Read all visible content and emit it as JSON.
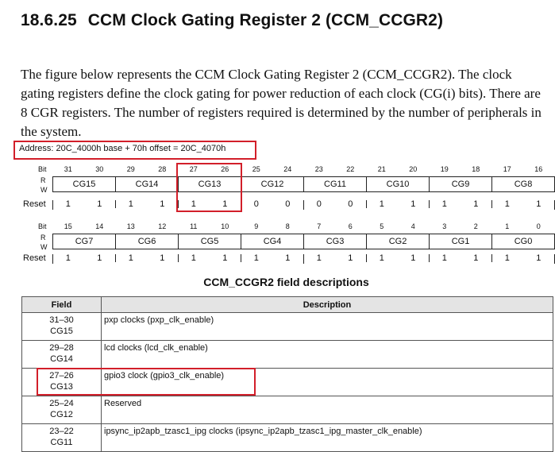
{
  "heading": {
    "number": "18.6.25",
    "title": "CCM Clock Gating Register 2 (CCM_CCGR2)"
  },
  "paragraph": "The figure below represents the CCM Clock Gating Register 2 (CCM_CCGR2). The clock gating registers define the clock gating for power reduction of each clock (CG(i) bits). There are 8 CGR registers. The number of registers required is determined by the number of peripherals in the system.",
  "address": "Address: 20C_4000h base + 70h offset = 20C_4070h",
  "labels": {
    "bit": "Bit",
    "r": "R",
    "w": "W",
    "reset": "Reset"
  },
  "upper": {
    "bits": [
      "31",
      "30",
      "29",
      "28",
      "27",
      "26",
      "25",
      "24",
      "23",
      "22",
      "21",
      "20",
      "19",
      "18",
      "17",
      "16"
    ],
    "fields": [
      "CG15",
      "CG14",
      "CG13",
      "CG12",
      "CG11",
      "CG10",
      "CG9",
      "CG8"
    ],
    "reset": [
      "1",
      "1",
      "1",
      "1",
      "1",
      "1",
      "0",
      "0",
      "0",
      "0",
      "1",
      "1",
      "1",
      "1",
      "1",
      "1"
    ]
  },
  "lower": {
    "bits": [
      "15",
      "14",
      "13",
      "12",
      "11",
      "10",
      "9",
      "8",
      "7",
      "6",
      "5",
      "4",
      "3",
      "2",
      "1",
      "0"
    ],
    "fields": [
      "CG7",
      "CG6",
      "CG5",
      "CG4",
      "CG3",
      "CG2",
      "CG1",
      "CG0"
    ],
    "reset": [
      "1",
      "1",
      "1",
      "1",
      "1",
      "1",
      "1",
      "1",
      "1",
      "1",
      "1",
      "1",
      "1",
      "1",
      "1",
      "1"
    ]
  },
  "table": {
    "title": "CCM_CCGR2 field descriptions",
    "headers": [
      "Field",
      "Description"
    ],
    "rows": [
      {
        "bits": "31–30",
        "name": "CG15",
        "desc": "pxp clocks (pxp_clk_enable)"
      },
      {
        "bits": "29–28",
        "name": "CG14",
        "desc": "lcd clocks (lcd_clk_enable)"
      },
      {
        "bits": "27–26",
        "name": "CG13",
        "desc": "gpio3 clock (gpio3_clk_enable)"
      },
      {
        "bits": "25–24",
        "name": "CG12",
        "desc": "Reserved"
      },
      {
        "bits": "23–22",
        "name": "CG11",
        "desc": "ipsync_ip2apb_tzasc1_ipg clocks (ipsync_ip2apb_tzasc1_ipg_master_clk_enable)"
      }
    ]
  },
  "highlight_color": "#d21f2a"
}
